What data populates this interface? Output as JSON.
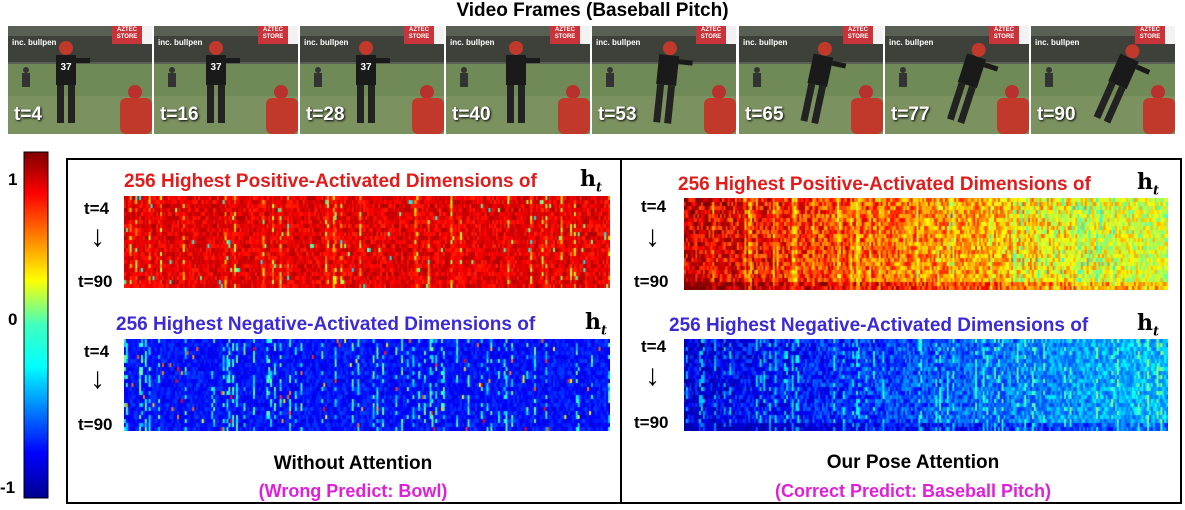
{
  "frames_title": "Video Frames (Baseball Pitch)",
  "frames": [
    {
      "label": "t=4",
      "sign1": "inc. bullpen",
      "sign2": "AZTEC STORE",
      "jersey": "37"
    },
    {
      "label": "t=16",
      "sign1": "inc. bullpen",
      "sign2": "AZTEC STORE",
      "jersey": "37"
    },
    {
      "label": "t=28",
      "sign1": "inc. bullpen",
      "sign2": "AZTEC STORE",
      "jersey": "37"
    },
    {
      "label": "t=40",
      "sign1": "inc. bullpen",
      "sign2": "AZTEC STORE",
      "jersey": ""
    },
    {
      "label": "t=53",
      "sign1": "inc. bullpen",
      "sign2": "AZTEC STORE",
      "jersey": ""
    },
    {
      "label": "t=65",
      "sign1": "inc. bullpen",
      "sign2": "AZTEC STORE",
      "jersey": ""
    },
    {
      "label": "t=77",
      "sign1": "inc. bullpen",
      "sign2": "AZTEC STORE",
      "jersey": ""
    },
    {
      "label": "t=90",
      "sign1": "inc. bullpen",
      "sign2": "AZTEC STORE",
      "jersey": ""
    }
  ],
  "colorbar": {
    "max_label": "1",
    "mid_label": "0",
    "min_label": "-1"
  },
  "panels": {
    "left": {
      "pos_title": "256 Highest Positive-Activated Dimensions of",
      "neg_title": "256 Highest Negative-Activated Dimensions of",
      "ht_symbol": "h",
      "ht_sub": "t",
      "t_start": "t=4",
      "t_end": "t=90",
      "caption": "Without Attention",
      "prediction": "(Wrong Predict: Bowl)"
    },
    "right": {
      "pos_title": "256 Highest Positive-Activated Dimensions of",
      "neg_title": "256 Highest Negative-Activated Dimensions of",
      "ht_symbol": "h",
      "ht_sub": "t",
      "t_start": "t=4",
      "t_end": "t=90",
      "caption": "Our Pose Attention",
      "prediction": "(Correct Predict: Baseball Pitch)"
    }
  },
  "colors": {
    "positive_title": "#e31b1b",
    "negative_title": "#3b2ad6",
    "prediction": "#e020d8"
  }
}
